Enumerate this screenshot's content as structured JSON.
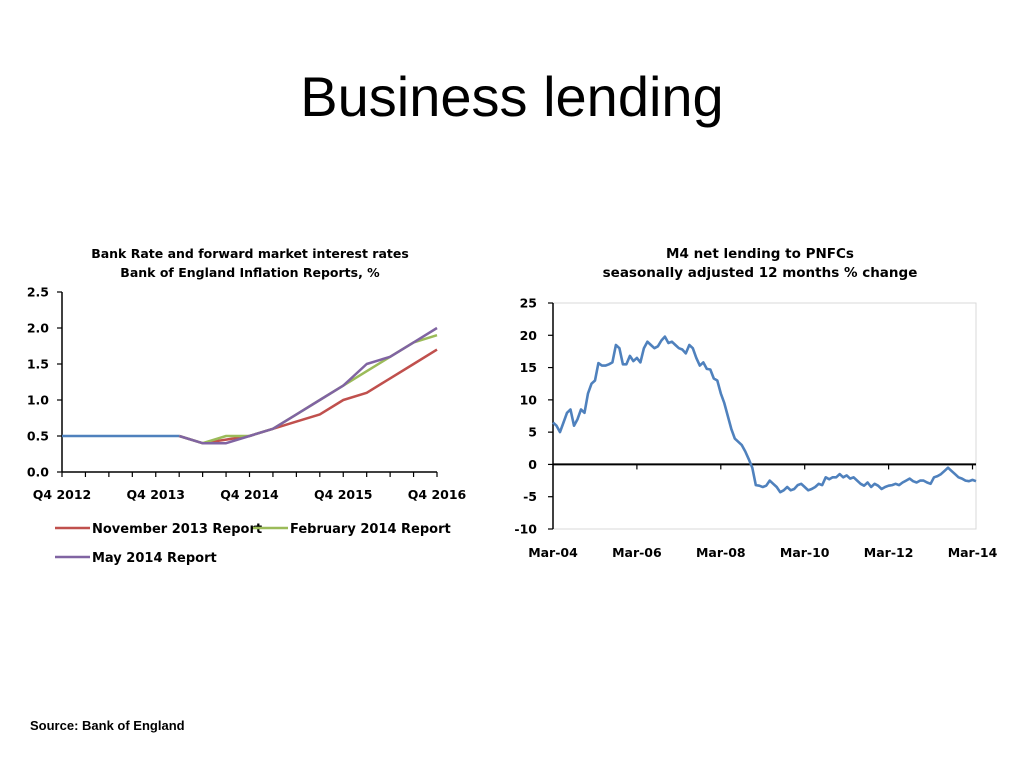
{
  "slide": {
    "title": "Business lending",
    "source": "Source: Bank of England"
  },
  "colors": {
    "november_2013": "#c0504d",
    "february_2014": "#9bbb59",
    "may_2014": "#8064a2",
    "m4": "#4f81bd",
    "base": "#4f81bd",
    "axis": "#000000"
  },
  "chart_data": [
    {
      "type": "line",
      "title_lines": [
        "Bank Rate and forward market interest rates",
        "Bank of England Inflation Reports, %"
      ],
      "xlabel": "",
      "ylabel": "",
      "x_tick_labels": [
        "Q4 2012",
        "Q4 2013",
        "Q4 2014",
        "Q4 2015",
        "Q4 2016"
      ],
      "x_quarter_range": [
        0,
        16
      ],
      "ylim": [
        0,
        2.5
      ],
      "y_ticks": [
        "0.0",
        "0.5",
        "1.0",
        "1.5",
        "2.0",
        "2.5"
      ],
      "grid": false,
      "legend_position": "bottom",
      "base_series": {
        "color": "#4f81bd",
        "x": [
          0,
          1,
          2,
          3,
          4,
          5
        ],
        "values": [
          0.5,
          0.5,
          0.5,
          0.5,
          0.5,
          0.5
        ]
      },
      "series": [
        {
          "name": "November 2013 Report",
          "color": "#c0504d",
          "x": [
            5,
            6,
            7,
            8,
            9,
            10,
            11,
            12,
            13,
            14,
            15,
            16
          ],
          "values": [
            0.5,
            0.4,
            0.45,
            0.5,
            0.6,
            0.7,
            0.8,
            1.0,
            1.1,
            1.3,
            1.5,
            1.7
          ]
        },
        {
          "name": "February 2014 Report",
          "color": "#9bbb59",
          "x": [
            5,
            6,
            7,
            8,
            9,
            10,
            11,
            12,
            13,
            14,
            15,
            16
          ],
          "values": [
            0.5,
            0.4,
            0.5,
            0.5,
            0.6,
            0.8,
            1.0,
            1.2,
            1.4,
            1.6,
            1.8,
            1.9
          ]
        },
        {
          "name": "May 2014 Report",
          "color": "#8064a2",
          "x": [
            5,
            6,
            7,
            8,
            9,
            10,
            11,
            12,
            13,
            14,
            15,
            16
          ],
          "values": [
            0.5,
            0.4,
            0.4,
            0.5,
            0.6,
            0.8,
            1.0,
            1.2,
            1.5,
            1.6,
            1.8,
            2.0
          ]
        }
      ]
    },
    {
      "type": "line",
      "title_lines": [
        "M4 net lending to PNFCs",
        "seasonally adjusted 12 months % change"
      ],
      "xlabel": "",
      "ylabel": "",
      "x_tick_labels": [
        "Mar-04",
        "Mar-06",
        "Mar-08",
        "Mar-10",
        "Mar-12",
        "Mar-14"
      ],
      "x_month_range": [
        0,
        121
      ],
      "ylim": [
        -10,
        25
      ],
      "y_ticks": [
        "-10",
        "-5",
        "0",
        "5",
        "10",
        "15",
        "20",
        "25"
      ],
      "grid": false,
      "legend_position": "none",
      "series": [
        {
          "color": "#4f81bd",
          "x": [
            0,
            1,
            2,
            3,
            4,
            5,
            6,
            7,
            8,
            9,
            10,
            11,
            12,
            13,
            14,
            15,
            16,
            17,
            18,
            19,
            20,
            21,
            22,
            23,
            24,
            25,
            26,
            27,
            28,
            29,
            30,
            31,
            32,
            33,
            34,
            35,
            36,
            37,
            38,
            39,
            40,
            41,
            42,
            43,
            44,
            45,
            46,
            47,
            48,
            49,
            50,
            51,
            52,
            53,
            54,
            55,
            56,
            57,
            58,
            59,
            60,
            61,
            62,
            63,
            64,
            65,
            66,
            67,
            68,
            69,
            70,
            71,
            72,
            73,
            74,
            75,
            76,
            77,
            78,
            79,
            80,
            81,
            82,
            83,
            84,
            85,
            86,
            87,
            88,
            89,
            90,
            91,
            92,
            93,
            94,
            95,
            96,
            97,
            98,
            99,
            100,
            101,
            102,
            103,
            104,
            105,
            106,
            107,
            108,
            109,
            110,
            111,
            112,
            113,
            114,
            115,
            116,
            117,
            118,
            119,
            120,
            121
          ],
          "values": [
            6.5,
            6.0,
            5.0,
            6.5,
            8.0,
            8.5,
            6.0,
            7.0,
            8.5,
            8.0,
            11.0,
            12.5,
            13.0,
            15.7,
            15.3,
            15.3,
            15.5,
            15.8,
            18.5,
            18.0,
            15.5,
            15.5,
            16.8,
            16.0,
            16.5,
            15.8,
            18.0,
            19.0,
            18.5,
            18.0,
            18.3,
            19.2,
            19.8,
            18.8,
            19.0,
            18.5,
            18.0,
            17.8,
            17.2,
            18.5,
            18.0,
            16.5,
            15.3,
            15.8,
            14.8,
            14.7,
            13.3,
            13.0,
            11.0,
            9.5,
            7.5,
            5.5,
            4.0,
            3.5,
            3.0,
            2.0,
            0.8,
            -0.5,
            -3.2,
            -3.3,
            -3.5,
            -3.3,
            -2.5,
            -3.0,
            -3.5,
            -4.3,
            -4.0,
            -3.5,
            -4.0,
            -3.8,
            -3.2,
            -3.0,
            -3.5,
            -4.0,
            -3.8,
            -3.5,
            -3.0,
            -3.2,
            -2.0,
            -2.3,
            -2.0,
            -2.0,
            -1.5,
            -2.0,
            -1.7,
            -2.2,
            -2.0,
            -2.5,
            -3.0,
            -3.3,
            -2.8,
            -3.5,
            -3.0,
            -3.3,
            -3.8,
            -3.5,
            -3.3,
            -3.2,
            -3.0,
            -3.2,
            -2.8,
            -2.5,
            -2.2,
            -2.6,
            -2.8,
            -2.5,
            -2.5,
            -2.8,
            -3.0,
            -2.0,
            -1.8,
            -1.5,
            -1.0,
            -0.5,
            -1.0,
            -1.5,
            -2.0,
            -2.2,
            -2.5,
            -2.6,
            -2.4,
            -2.6
          ]
        }
      ]
    }
  ]
}
